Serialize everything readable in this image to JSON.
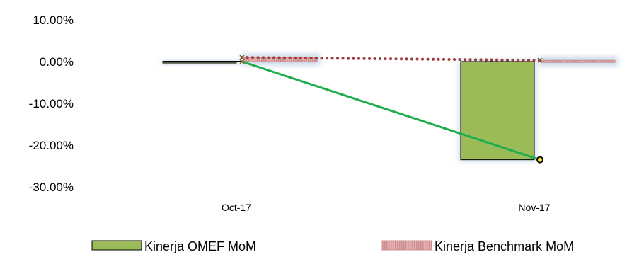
{
  "chart_data": {
    "type": "bar",
    "categories": [
      "Oct-17",
      "Nov-17"
    ],
    "series": [
      {
        "name": "Kinerja OMEF MoM",
        "kind": "bar",
        "values": [
          0,
          -23.5
        ],
        "color": "#9bbb59"
      },
      {
        "name": "Kinerja Benchmark MoM",
        "kind": "bar",
        "values": [
          1.0,
          0.3
        ],
        "color": "#e3a6a6"
      },
      {
        "kind": "line",
        "values": [
          0,
          -23.5
        ],
        "color": "#1fae4b"
      },
      {
        "kind": "line",
        "values": [
          1.0,
          0.3
        ],
        "color": "#a03b3b",
        "dash": "dotted"
      }
    ],
    "yticks": [
      "10.00%",
      "0.00%",
      "-10.00%",
      "-20.00%",
      "-30.00%"
    ],
    "ytick_values": [
      10,
      0,
      -10,
      -20,
      -30
    ],
    "ylim": [
      -30,
      10
    ],
    "legend": {
      "position": "bottom"
    },
    "grid": false
  }
}
